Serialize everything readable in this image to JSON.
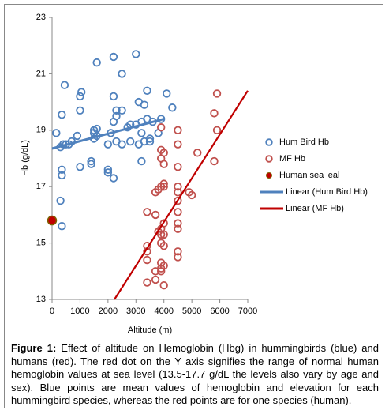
{
  "chart_data": {
    "type": "scatter",
    "xlabel": "Altitude (m)",
    "ylabel": "Hb (g/dL)",
    "xlim": [
      0,
      7000
    ],
    "xticks": [
      0,
      1000,
      2000,
      3000,
      4000,
      5000,
      6000,
      7000
    ],
    "ylim": [
      13,
      23
    ],
    "yticks": [
      13,
      15,
      17,
      19,
      21,
      23
    ],
    "grid": false,
    "legend": "right",
    "series": [
      {
        "name": "Hum Bird Hb",
        "color": "#4f81bd",
        "style": "open-circle",
        "x": [
          150,
          350,
          450,
          300,
          400,
          500,
          600,
          350,
          350,
          300,
          350,
          700,
          900,
          1000,
          1050,
          1000,
          1000,
          1400,
          1400,
          1500,
          1500,
          1600,
          1600,
          1500,
          1600,
          2000,
          2000,
          2000,
          2100,
          2200,
          2200,
          2200,
          2300,
          2300,
          2300,
          2200,
          2500,
          2500,
          2500,
          2700,
          2800,
          2800,
          3000,
          3000,
          3100,
          3200,
          3200,
          3300,
          3300,
          3400,
          3400,
          3500,
          3500,
          3200,
          3600,
          3800,
          3900,
          4100,
          4300,
          3100
        ],
        "values": [
          18.9,
          19.55,
          20.6,
          18.4,
          18.5,
          18.5,
          18.5,
          17.4,
          17.6,
          16.5,
          15.6,
          18.6,
          18.8,
          20.2,
          20.35,
          19.7,
          17.7,
          17.9,
          17.8,
          18.9,
          19.0,
          19.05,
          21.4,
          18.7,
          18.8,
          18.5,
          17.6,
          17.5,
          18.9,
          21.6,
          20.2,
          19.3,
          19.7,
          19.5,
          18.6,
          17.3,
          19.7,
          18.5,
          21.0,
          19.1,
          18.6,
          19.2,
          21.7,
          19.2,
          20.0,
          18.9,
          19.3,
          19.9,
          18.6,
          20.4,
          19.4,
          18.6,
          18.7,
          17.9,
          19.3,
          18.9,
          19.4,
          20.3,
          19.8,
          18.5
        ]
      },
      {
        "name": "MF Hb",
        "color": "#c0504d",
        "style": "open-circle",
        "x": [
          3400,
          3400,
          3400,
          3400,
          3400,
          3700,
          3700,
          3700,
          3700,
          3800,
          3800,
          3900,
          3900,
          3900,
          3900,
          3900,
          3900,
          4000,
          4000,
          4000,
          4000,
          4000,
          3900,
          4000,
          4000,
          3900,
          4000,
          3900,
          4000,
          3900,
          4500,
          4500,
          4500,
          4500,
          4500,
          4500,
          4500,
          4500,
          4500,
          4500,
          4500,
          4900,
          5000,
          5200,
          5800,
          5900,
          5900,
          5800
        ],
        "values": [
          14.9,
          14.7,
          14.4,
          13.6,
          16.1,
          13.7,
          14.0,
          16.0,
          16.8,
          16.9,
          15.4,
          14.3,
          14.1,
          14.0,
          15.0,
          15.3,
          15.5,
          15.7,
          15.3,
          14.9,
          14.2,
          13.5,
          17.0,
          17.0,
          17.1,
          18.0,
          18.2,
          18.3,
          17.8,
          19.1,
          19.0,
          18.5,
          17.7,
          17.0,
          16.8,
          16.5,
          16.1,
          15.7,
          15.5,
          14.7,
          14.5,
          16.8,
          16.7,
          18.2,
          19.6,
          20.3,
          19.0,
          17.9
        ]
      },
      {
        "name": "Human sea leal",
        "color": "#c00000",
        "style": "dot",
        "x": [
          0
        ],
        "values": [
          15.8
        ]
      },
      {
        "name": "Linear (Hum Bird Hb)",
        "color": "#4f81bd",
        "style": "line",
        "x": [
          0,
          4000
        ],
        "values": [
          18.35,
          19.4
        ]
      },
      {
        "name": "Linear (MF Hb)",
        "color": "#c00000",
        "style": "line",
        "x": [
          2230,
          7000
        ],
        "values": [
          13,
          20.4
        ]
      }
    ]
  },
  "caption": {
    "label": "Figure 1:",
    "text": " Effect of altitude on Hemoglobin (Hbg) in hummingbirds (blue) and humans (red). The red dot on the Y axis signifies the range of normal human hemoglobin values at sea level (13.5-17.7 g/dL the levels also vary by age and sex). Blue points are mean values of hemoglobin and elevation for each hummingbird species, whereas the red points are for one species (human)."
  }
}
